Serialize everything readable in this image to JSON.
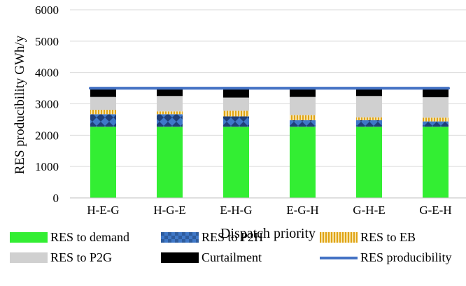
{
  "chart_data": {
    "type": "bar",
    "stacked": true,
    "title": "",
    "xlabel": "Dispatch priority",
    "ylabel": "RES producibility GWh/y",
    "ylim": [
      0,
      6000
    ],
    "yticks": [
      "0",
      "1000",
      "2000",
      "3000",
      "4000",
      "5000",
      "6000"
    ],
    "grid": true,
    "legend_position": "bottom",
    "categories": [
      "H-E-G",
      "H-G-E",
      "E-H-G",
      "E-G-H",
      "G-H-E",
      "G-E-H"
    ],
    "series": [
      {
        "name": "RES to demand",
        "color": "#33EE33",
        "pattern": "solid",
        "values": [
          2270,
          2270,
          2270,
          2270,
          2270,
          2270
        ]
      },
      {
        "name": "RES to P2H",
        "color": "#2E5C9E",
        "pattern": "diamond",
        "values": [
          400,
          400,
          330,
          210,
          210,
          170
        ]
      },
      {
        "name": "RES to EB",
        "color": "#E8B323",
        "pattern": "vstripe",
        "values": [
          140,
          90,
          180,
          160,
          90,
          120
        ]
      },
      {
        "name": "RES to P2G",
        "color": "#D0D0D0",
        "pattern": "solid",
        "values": [
          410,
          490,
          420,
          580,
          680,
          650
        ]
      },
      {
        "name": "Curtailment",
        "color": "#000000",
        "pattern": "solid",
        "values": [
          280,
          250,
          300,
          280,
          250,
          290
        ]
      }
    ],
    "line": {
      "name": "RES producibility",
      "color": "#4472C4",
      "value": 3500
    }
  }
}
